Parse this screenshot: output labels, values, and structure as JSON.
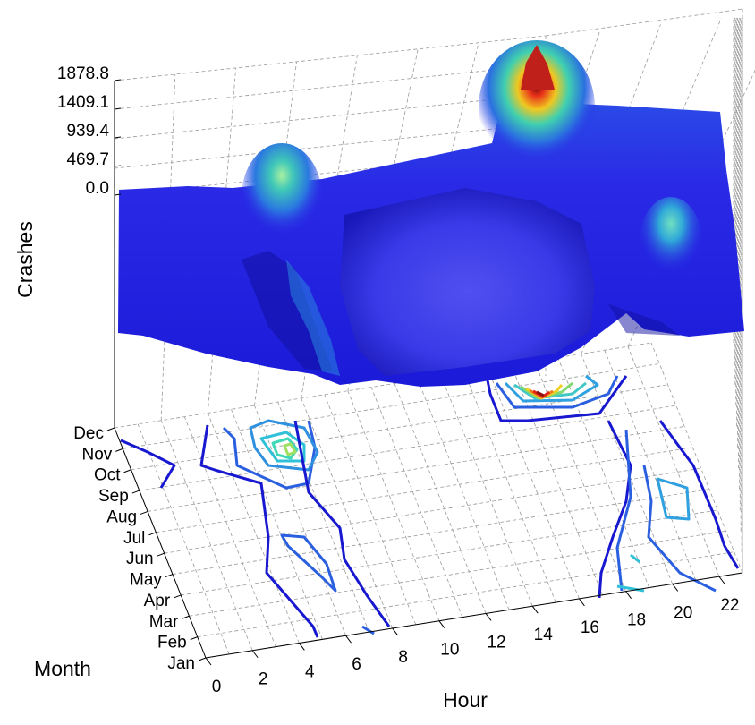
{
  "chart_data": {
    "type": "surface",
    "title": "",
    "xlabel": "Hour",
    "ylabel": "Month",
    "zlabel": "Crashes",
    "x_ticks": [
      "0",
      "2",
      "4",
      "6",
      "8",
      "10",
      "12",
      "14",
      "16",
      "18",
      "20",
      "22"
    ],
    "y_ticks": [
      "Jan",
      "Feb",
      "Mar",
      "Apr",
      "May",
      "Jun",
      "Jul",
      "Aug",
      "Sep",
      "Oct",
      "Nov",
      "Dec"
    ],
    "z_ticks": [
      "0.0",
      "469.7",
      "939.4",
      "1409.1",
      "1878.8"
    ],
    "zlim": [
      0,
      1878.8
    ],
    "grid": true,
    "colormap": "jet",
    "colors": {
      "low": "#1a1adc",
      "mid": "#2fb0d8",
      "high": "#e8321a",
      "peak": "#7a0a0a"
    },
    "series": [
      {
        "name": "Dec",
        "values": [
          230,
          180,
          120,
          100,
          160,
          600,
          420,
          330,
          300,
          310,
          330,
          360,
          400,
          500,
          900,
          1850,
          1300,
          900,
          700,
          450,
          380,
          320,
          280,
          250
        ]
      },
      {
        "name": "Nov",
        "values": [
          200,
          160,
          110,
          90,
          140,
          550,
          500,
          350,
          300,
          310,
          320,
          350,
          380,
          460,
          800,
          1500,
          1150,
          800,
          620,
          420,
          400,
          360,
          300,
          240
        ]
      },
      {
        "name": "Oct",
        "values": [
          180,
          140,
          100,
          90,
          130,
          400,
          430,
          320,
          290,
          300,
          310,
          330,
          360,
          430,
          700,
          1100,
          900,
          700,
          560,
          400,
          520,
          600,
          380,
          220
        ]
      },
      {
        "name": "Sep",
        "values": [
          170,
          130,
          95,
          85,
          120,
          300,
          330,
          300,
          280,
          290,
          300,
          320,
          340,
          400,
          560,
          700,
          640,
          560,
          480,
          420,
          600,
          660,
          400,
          210
        ]
      },
      {
        "name": "Aug",
        "values": [
          160,
          120,
          90,
          80,
          110,
          260,
          360,
          290,
          270,
          280,
          290,
          300,
          320,
          370,
          480,
          560,
          520,
          470,
          430,
          400,
          560,
          600,
          380,
          200
        ]
      },
      {
        "name": "Jul",
        "values": [
          155,
          115,
          88,
          78,
          105,
          250,
          340,
          280,
          265,
          275,
          285,
          295,
          315,
          360,
          460,
          520,
          490,
          450,
          420,
          390,
          520,
          540,
          360,
          195
        ]
      },
      {
        "name": "Jun",
        "values": [
          150,
          110,
          85,
          75,
          100,
          240,
          300,
          270,
          260,
          270,
          280,
          290,
          310,
          350,
          440,
          500,
          470,
          430,
          410,
          380,
          480,
          480,
          340,
          190
        ]
      },
      {
        "name": "May",
        "values": [
          145,
          105,
          82,
          72,
          98,
          230,
          280,
          260,
          255,
          265,
          275,
          285,
          300,
          340,
          420,
          480,
          450,
          420,
          400,
          370,
          440,
          440,
          320,
          185
        ]
      },
      {
        "name": "Apr",
        "values": [
          140,
          100,
          80,
          70,
          95,
          220,
          260,
          250,
          250,
          260,
          270,
          280,
          295,
          330,
          400,
          460,
          440,
          410,
          390,
          360,
          420,
          430,
          310,
          180
        ]
      },
      {
        "name": "Mar",
        "values": [
          135,
          98,
          78,
          68,
          92,
          210,
          250,
          245,
          245,
          255,
          265,
          275,
          290,
          320,
          390,
          450,
          430,
          400,
          380,
          350,
          430,
          460,
          320,
          178
        ]
      },
      {
        "name": "Feb",
        "values": [
          130,
          95,
          76,
          66,
          90,
          200,
          240,
          240,
          240,
          250,
          260,
          270,
          285,
          315,
          380,
          440,
          420,
          395,
          375,
          345,
          440,
          500,
          330,
          175
        ]
      },
      {
        "name": "Jan",
        "values": [
          128,
          93,
          75,
          65,
          88,
          195,
          235,
          235,
          238,
          248,
          258,
          268,
          282,
          312,
          375,
          435,
          415,
          390,
          372,
          342,
          450,
          520,
          340,
          172
        ]
      }
    ],
    "x": [
      0,
      1,
      2,
      3,
      4,
      5,
      6,
      7,
      8,
      9,
      10,
      11,
      12,
      13,
      14,
      15,
      16,
      17,
      18,
      19,
      20,
      21,
      22,
      23
    ]
  }
}
